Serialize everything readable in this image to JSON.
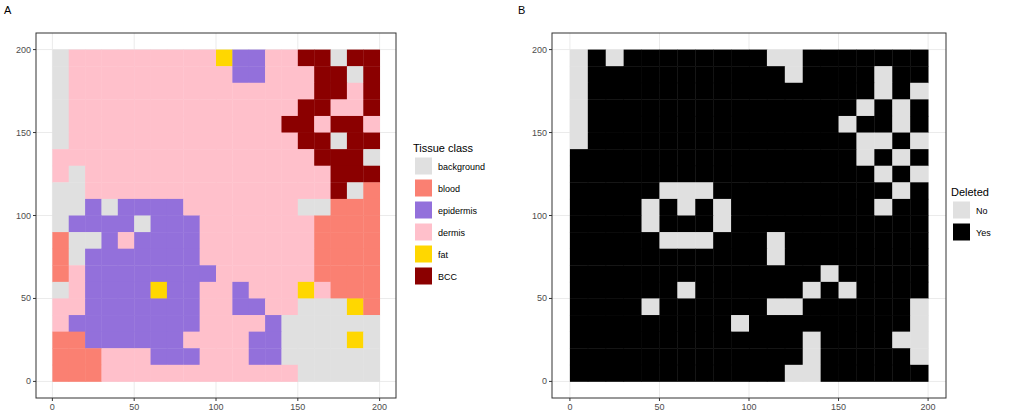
{
  "chart_data": [
    {
      "type": "heatmap",
      "title": "A",
      "xlim": [
        -10,
        210
      ],
      "ylim": [
        -10,
        210
      ],
      "xticks": [
        0,
        50,
        100,
        150,
        200
      ],
      "yticks": [
        0,
        50,
        100,
        150,
        200
      ],
      "grid": true,
      "legend": "right",
      "legend_title": "Tissue class",
      "classes": [
        {
          "name": "background",
          "color": "#e0e0e0"
        },
        {
          "name": "blood",
          "color": "#fa8072"
        },
        {
          "name": "epidermis",
          "color": "#9370db"
        },
        {
          "name": "dermis",
          "color": "#ffc0cb"
        },
        {
          "name": "fat",
          "color": "#ffd700"
        },
        {
          "name": "BCC",
          "color": "#8b0000"
        }
      ],
      "x": [
        5,
        15,
        25,
        35,
        45,
        55,
        65,
        75,
        85,
        95,
        105,
        115,
        125,
        135,
        145,
        155,
        165,
        175,
        185,
        195
      ],
      "y": [
        195,
        185,
        175,
        165,
        155,
        145,
        135,
        125,
        115,
        105,
        95,
        85,
        75,
        65,
        55,
        45,
        35,
        25,
        15,
        5
      ],
      "cells": [
        [
          0,
          3,
          3,
          3,
          3,
          3,
          3,
          3,
          3,
          3,
          4,
          2,
          2,
          3,
          3,
          5,
          5,
          0,
          5,
          5
        ],
        [
          0,
          3,
          3,
          3,
          3,
          3,
          3,
          3,
          3,
          3,
          3,
          2,
          2,
          3,
          3,
          3,
          5,
          5,
          0,
          5
        ],
        [
          0,
          3,
          3,
          3,
          3,
          3,
          3,
          3,
          3,
          3,
          3,
          3,
          3,
          3,
          3,
          3,
          5,
          5,
          3,
          5
        ],
        [
          0,
          3,
          3,
          3,
          3,
          3,
          3,
          3,
          3,
          3,
          3,
          3,
          3,
          3,
          3,
          5,
          5,
          3,
          3,
          5
        ],
        [
          0,
          3,
          3,
          3,
          3,
          3,
          3,
          3,
          3,
          3,
          3,
          3,
          3,
          3,
          5,
          5,
          3,
          5,
          5,
          3
        ],
        [
          0,
          3,
          3,
          3,
          3,
          3,
          3,
          3,
          3,
          3,
          3,
          3,
          3,
          3,
          3,
          5,
          5,
          0,
          5,
          5
        ],
        [
          3,
          3,
          3,
          3,
          3,
          3,
          3,
          3,
          3,
          3,
          3,
          3,
          3,
          3,
          3,
          3,
          5,
          5,
          5,
          0
        ],
        [
          3,
          0,
          3,
          3,
          3,
          3,
          3,
          3,
          3,
          3,
          3,
          3,
          3,
          3,
          3,
          3,
          3,
          5,
          5,
          5
        ],
        [
          0,
          0,
          3,
          3,
          3,
          3,
          3,
          3,
          3,
          3,
          3,
          3,
          3,
          3,
          3,
          3,
          3,
          5,
          0,
          1
        ],
        [
          0,
          0,
          2,
          0,
          2,
          2,
          2,
          2,
          3,
          3,
          3,
          3,
          3,
          3,
          3,
          0,
          0,
          1,
          1,
          1
        ],
        [
          0,
          2,
          2,
          2,
          2,
          0,
          2,
          2,
          2,
          3,
          3,
          3,
          3,
          3,
          3,
          3,
          1,
          1,
          1,
          1
        ],
        [
          1,
          0,
          0,
          2,
          3,
          2,
          2,
          2,
          2,
          3,
          3,
          3,
          3,
          3,
          3,
          3,
          1,
          1,
          1,
          1
        ],
        [
          1,
          0,
          2,
          2,
          2,
          2,
          2,
          2,
          2,
          3,
          3,
          3,
          3,
          3,
          3,
          3,
          1,
          1,
          1,
          1
        ],
        [
          1,
          3,
          2,
          2,
          2,
          2,
          2,
          2,
          2,
          2,
          3,
          3,
          3,
          3,
          3,
          3,
          1,
          1,
          1,
          1
        ],
        [
          0,
          3,
          2,
          2,
          2,
          2,
          4,
          2,
          2,
          3,
          3,
          2,
          3,
          3,
          3,
          4,
          3,
          1,
          1,
          1
        ],
        [
          3,
          3,
          2,
          2,
          2,
          2,
          2,
          2,
          2,
          3,
          3,
          2,
          2,
          3,
          3,
          0,
          0,
          0,
          4,
          1
        ],
        [
          3,
          2,
          2,
          2,
          2,
          2,
          2,
          2,
          2,
          3,
          3,
          3,
          3,
          2,
          0,
          0,
          0,
          0,
          0,
          0
        ],
        [
          1,
          1,
          2,
          2,
          2,
          2,
          2,
          2,
          3,
          3,
          3,
          3,
          2,
          2,
          0,
          0,
          0,
          0,
          4,
          0
        ],
        [
          1,
          1,
          1,
          3,
          3,
          3,
          2,
          2,
          2,
          3,
          3,
          3,
          2,
          2,
          0,
          0,
          0,
          0,
          0,
          0
        ],
        [
          1,
          1,
          1,
          3,
          3,
          3,
          3,
          3,
          3,
          3,
          3,
          3,
          3,
          3,
          3,
          0,
          0,
          0,
          0,
          0
        ]
      ]
    },
    {
      "type": "heatmap",
      "title": "B",
      "xlim": [
        -10,
        210
      ],
      "ylim": [
        -10,
        210
      ],
      "xticks": [
        0,
        50,
        100,
        150,
        200
      ],
      "yticks": [
        0,
        50,
        100,
        150,
        200
      ],
      "grid": true,
      "legend": "right",
      "legend_title": "Deleted",
      "classes": [
        {
          "name": "No",
          "color": "#e0e0e0"
        },
        {
          "name": "Yes",
          "color": "#000000"
        }
      ],
      "x": [
        5,
        15,
        25,
        35,
        45,
        55,
        65,
        75,
        85,
        95,
        105,
        115,
        125,
        135,
        145,
        155,
        165,
        175,
        185,
        195
      ],
      "y": [
        195,
        185,
        175,
        165,
        155,
        145,
        135,
        125,
        115,
        105,
        95,
        85,
        75,
        65,
        55,
        45,
        35,
        25,
        15,
        5
      ],
      "cells": [
        [
          0,
          1,
          0,
          1,
          1,
          1,
          1,
          1,
          1,
          1,
          1,
          0,
          0,
          1,
          1,
          1,
          1,
          1,
          1,
          1
        ],
        [
          0,
          1,
          1,
          1,
          1,
          1,
          1,
          1,
          1,
          1,
          1,
          1,
          0,
          1,
          1,
          1,
          1,
          0,
          1,
          1
        ],
        [
          0,
          1,
          1,
          1,
          1,
          1,
          1,
          1,
          1,
          1,
          1,
          1,
          1,
          1,
          1,
          1,
          1,
          0,
          1,
          0
        ],
        [
          0,
          1,
          1,
          1,
          1,
          1,
          1,
          1,
          1,
          1,
          1,
          1,
          1,
          1,
          1,
          1,
          0,
          1,
          0,
          1
        ],
        [
          0,
          1,
          1,
          1,
          1,
          1,
          1,
          1,
          1,
          1,
          1,
          1,
          1,
          1,
          1,
          0,
          1,
          1,
          0,
          1
        ],
        [
          0,
          1,
          1,
          1,
          1,
          1,
          1,
          1,
          1,
          1,
          1,
          1,
          1,
          1,
          1,
          1,
          0,
          0,
          1,
          0
        ],
        [
          1,
          1,
          1,
          1,
          1,
          1,
          1,
          1,
          1,
          1,
          1,
          1,
          1,
          1,
          1,
          1,
          0,
          1,
          0,
          1
        ],
        [
          1,
          1,
          1,
          1,
          1,
          1,
          1,
          1,
          1,
          1,
          1,
          1,
          1,
          1,
          1,
          1,
          1,
          0,
          1,
          0
        ],
        [
          1,
          1,
          1,
          1,
          1,
          0,
          0,
          0,
          1,
          1,
          1,
          1,
          1,
          1,
          1,
          1,
          1,
          1,
          0,
          1
        ],
        [
          1,
          1,
          1,
          1,
          0,
          1,
          0,
          1,
          0,
          1,
          1,
          1,
          1,
          1,
          1,
          1,
          1,
          0,
          1,
          1
        ],
        [
          1,
          1,
          1,
          1,
          0,
          1,
          1,
          1,
          0,
          1,
          1,
          1,
          1,
          1,
          1,
          1,
          1,
          1,
          1,
          1
        ],
        [
          1,
          1,
          1,
          1,
          1,
          0,
          0,
          0,
          1,
          1,
          1,
          0,
          1,
          1,
          1,
          1,
          1,
          1,
          1,
          1
        ],
        [
          1,
          1,
          1,
          1,
          1,
          1,
          1,
          1,
          1,
          1,
          1,
          0,
          1,
          1,
          1,
          1,
          1,
          1,
          1,
          1
        ],
        [
          1,
          1,
          1,
          1,
          1,
          1,
          1,
          1,
          1,
          1,
          1,
          1,
          1,
          1,
          0,
          1,
          1,
          1,
          1,
          1
        ],
        [
          1,
          1,
          1,
          1,
          1,
          1,
          0,
          1,
          1,
          1,
          1,
          1,
          1,
          0,
          1,
          0,
          1,
          1,
          1,
          1
        ],
        [
          1,
          1,
          1,
          1,
          0,
          1,
          1,
          1,
          1,
          1,
          1,
          0,
          0,
          1,
          1,
          1,
          1,
          1,
          1,
          0
        ],
        [
          1,
          1,
          1,
          1,
          1,
          1,
          1,
          1,
          1,
          0,
          1,
          1,
          1,
          1,
          1,
          1,
          1,
          1,
          1,
          0
        ],
        [
          1,
          1,
          1,
          1,
          1,
          1,
          1,
          1,
          1,
          1,
          1,
          1,
          1,
          0,
          1,
          1,
          1,
          1,
          0,
          0
        ],
        [
          1,
          1,
          1,
          1,
          1,
          1,
          1,
          1,
          1,
          1,
          1,
          1,
          1,
          0,
          1,
          1,
          1,
          1,
          1,
          0
        ],
        [
          1,
          1,
          1,
          1,
          1,
          1,
          1,
          1,
          1,
          1,
          1,
          1,
          0,
          0,
          1,
          1,
          1,
          1,
          1,
          1
        ]
      ]
    }
  ]
}
